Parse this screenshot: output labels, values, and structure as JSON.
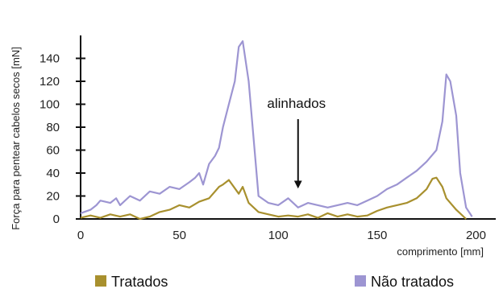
{
  "chart_data": {
    "type": "line",
    "title": "",
    "xlabel": "comprimento  [mm]",
    "ylabel": "Força para pentear cabelos secos [mN]",
    "xlim": [
      0,
      210
    ],
    "ylim": [
      0,
      160
    ],
    "x_ticks": [
      0,
      50,
      100,
      150,
      200
    ],
    "y_ticks": [
      0,
      20,
      40,
      60,
      80,
      100,
      120,
      140
    ],
    "grid": false,
    "legend_position": "bottom",
    "annotation": {
      "text": "alinhados",
      "x": 110,
      "y_top": 47,
      "y_bottom": 30
    },
    "colors": {
      "tratados": "#a8902e",
      "nao_tratados": "#9d95d2",
      "axis": "#111111"
    },
    "series": [
      {
        "name": "Tratados",
        "x": [
          0,
          5,
          10,
          15,
          20,
          25,
          30,
          35,
          40,
          45,
          50,
          55,
          60,
          65,
          70,
          72,
          75,
          80,
          82,
          85,
          90,
          95,
          100,
          105,
          110,
          115,
          120,
          125,
          130,
          135,
          140,
          145,
          150,
          155,
          160,
          165,
          170,
          175,
          178,
          180,
          183,
          185,
          190,
          195
        ],
        "y": [
          1,
          3,
          1,
          4,
          2,
          4,
          0,
          2,
          6,
          8,
          12,
          10,
          15,
          18,
          28,
          30,
          34,
          22,
          28,
          14,
          6,
          4,
          2,
          3,
          2,
          4,
          1,
          5,
          2,
          4,
          2,
          3,
          7,
          10,
          12,
          14,
          18,
          26,
          35,
          36,
          28,
          18,
          8,
          0
        ]
      },
      {
        "name": "Não tratados",
        "x": [
          0,
          5,
          8,
          10,
          15,
          18,
          20,
          25,
          30,
          35,
          40,
          45,
          50,
          55,
          58,
          60,
          62,
          65,
          68,
          70,
          72,
          75,
          78,
          80,
          82,
          85,
          87,
          90,
          95,
          100,
          105,
          110,
          115,
          120,
          125,
          130,
          135,
          140,
          145,
          150,
          155,
          160,
          165,
          170,
          175,
          180,
          183,
          185,
          187,
          190,
          192,
          195,
          198
        ],
        "y": [
          5,
          8,
          12,
          16,
          14,
          18,
          12,
          20,
          16,
          24,
          22,
          28,
          26,
          32,
          36,
          40,
          30,
          48,
          55,
          62,
          80,
          100,
          120,
          150,
          155,
          120,
          80,
          20,
          14,
          12,
          18,
          10,
          14,
          12,
          10,
          12,
          14,
          12,
          16,
          20,
          26,
          30,
          36,
          42,
          50,
          60,
          85,
          126,
          120,
          90,
          40,
          10,
          2
        ]
      }
    ]
  }
}
